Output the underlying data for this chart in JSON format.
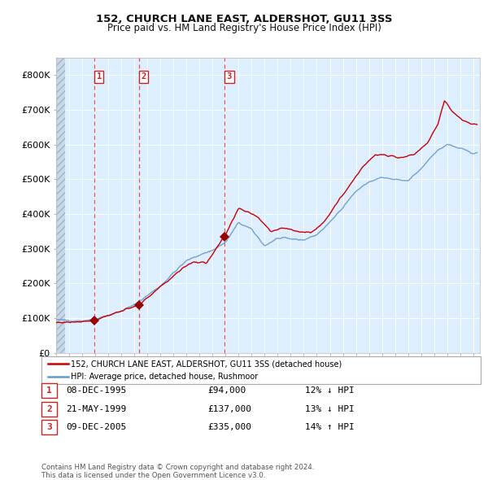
{
  "title": "152, CHURCH LANE EAST, ALDERSHOT, GU11 3SS",
  "subtitle": "Price paid vs. HM Land Registry's House Price Index (HPI)",
  "legend_line1": "152, CHURCH LANE EAST, ALDERSHOT, GU11 3SS (detached house)",
  "legend_line2": "HPI: Average price, detached house, Rushmoor",
  "footer": "Contains HM Land Registry data © Crown copyright and database right 2024.\nThis data is licensed under the Open Government Licence v3.0.",
  "sales": [
    {
      "num": 1,
      "date": "08-DEC-1995",
      "year": 1995.94,
      "price": 94000,
      "pct": "12%",
      "dir": "↓"
    },
    {
      "num": 2,
      "date": "21-MAY-1999",
      "year": 1999.38,
      "price": 137000,
      "pct": "13%",
      "dir": "↓"
    },
    {
      "num": 3,
      "date": "09-DEC-2005",
      "year": 2005.94,
      "price": 335000,
      "pct": "14%",
      "dir": "↑"
    }
  ],
  "ylim": [
    0,
    850000
  ],
  "yticks": [
    0,
    100000,
    200000,
    300000,
    400000,
    500000,
    600000,
    700000,
    800000
  ],
  "ytick_labels": [
    "£0",
    "£100K",
    "£200K",
    "£300K",
    "£400K",
    "£500K",
    "£600K",
    "£700K",
    "£800K"
  ],
  "hpi_color": "#6699cc",
  "price_color": "#cc0000",
  "sale_dot_color": "#990000",
  "vline_color": "#ee3333",
  "bg_color": "#ddeeff",
  "hatch_color": "#c8d8e8",
  "grid_color": "#ffffff",
  "box_color": "#cc2222",
  "xlim_start": 1993.0,
  "xlim_end": 2025.5,
  "hpi_anchors": [
    [
      1993.0,
      95000
    ],
    [
      1994.0,
      93000
    ],
    [
      1995.0,
      92000
    ],
    [
      1996.0,
      97000
    ],
    [
      1997.0,
      108000
    ],
    [
      1998.0,
      120000
    ],
    [
      1999.0,
      138000
    ],
    [
      2000.0,
      165000
    ],
    [
      2001.0,
      192000
    ],
    [
      2002.0,
      230000
    ],
    [
      2003.0,
      265000
    ],
    [
      2004.0,
      282000
    ],
    [
      2005.0,
      295000
    ],
    [
      2006.0,
      318000
    ],
    [
      2007.0,
      375000
    ],
    [
      2008.0,
      355000
    ],
    [
      2009.0,
      308000
    ],
    [
      2010.0,
      330000
    ],
    [
      2011.0,
      328000
    ],
    [
      2012.0,
      325000
    ],
    [
      2013.0,
      340000
    ],
    [
      2014.0,
      375000
    ],
    [
      2015.0,
      420000
    ],
    [
      2016.0,
      465000
    ],
    [
      2017.0,
      492000
    ],
    [
      2018.0,
      505000
    ],
    [
      2019.0,
      498000
    ],
    [
      2020.0,
      495000
    ],
    [
      2021.0,
      530000
    ],
    [
      2022.0,
      575000
    ],
    [
      2023.0,
      600000
    ],
    [
      2024.0,
      588000
    ],
    [
      2025.0,
      575000
    ]
  ],
  "price_anchors": [
    [
      1993.0,
      87000
    ],
    [
      1994.5,
      89000
    ],
    [
      1995.94,
      94000
    ],
    [
      1997.0,
      108000
    ],
    [
      1998.0,
      120000
    ],
    [
      1999.38,
      137000
    ],
    [
      2000.5,
      175000
    ],
    [
      2001.5,
      205000
    ],
    [
      2002.5,
      238000
    ],
    [
      2003.5,
      262000
    ],
    [
      2004.5,
      258000
    ],
    [
      2005.94,
      335000
    ],
    [
      2007.0,
      415000
    ],
    [
      2007.8,
      405000
    ],
    [
      2008.5,
      390000
    ],
    [
      2009.5,
      350000
    ],
    [
      2010.5,
      360000
    ],
    [
      2011.5,
      350000
    ],
    [
      2012.5,
      345000
    ],
    [
      2013.5,
      375000
    ],
    [
      2015.0,
      455000
    ],
    [
      2016.5,
      535000
    ],
    [
      2017.5,
      570000
    ],
    [
      2018.5,
      568000
    ],
    [
      2019.5,
      562000
    ],
    [
      2020.5,
      572000
    ],
    [
      2021.5,
      605000
    ],
    [
      2022.3,
      660000
    ],
    [
      2022.8,
      725000
    ],
    [
      2023.3,
      700000
    ],
    [
      2023.8,
      680000
    ],
    [
      2024.3,
      668000
    ],
    [
      2024.8,
      660000
    ],
    [
      2025.0,
      658000
    ]
  ]
}
